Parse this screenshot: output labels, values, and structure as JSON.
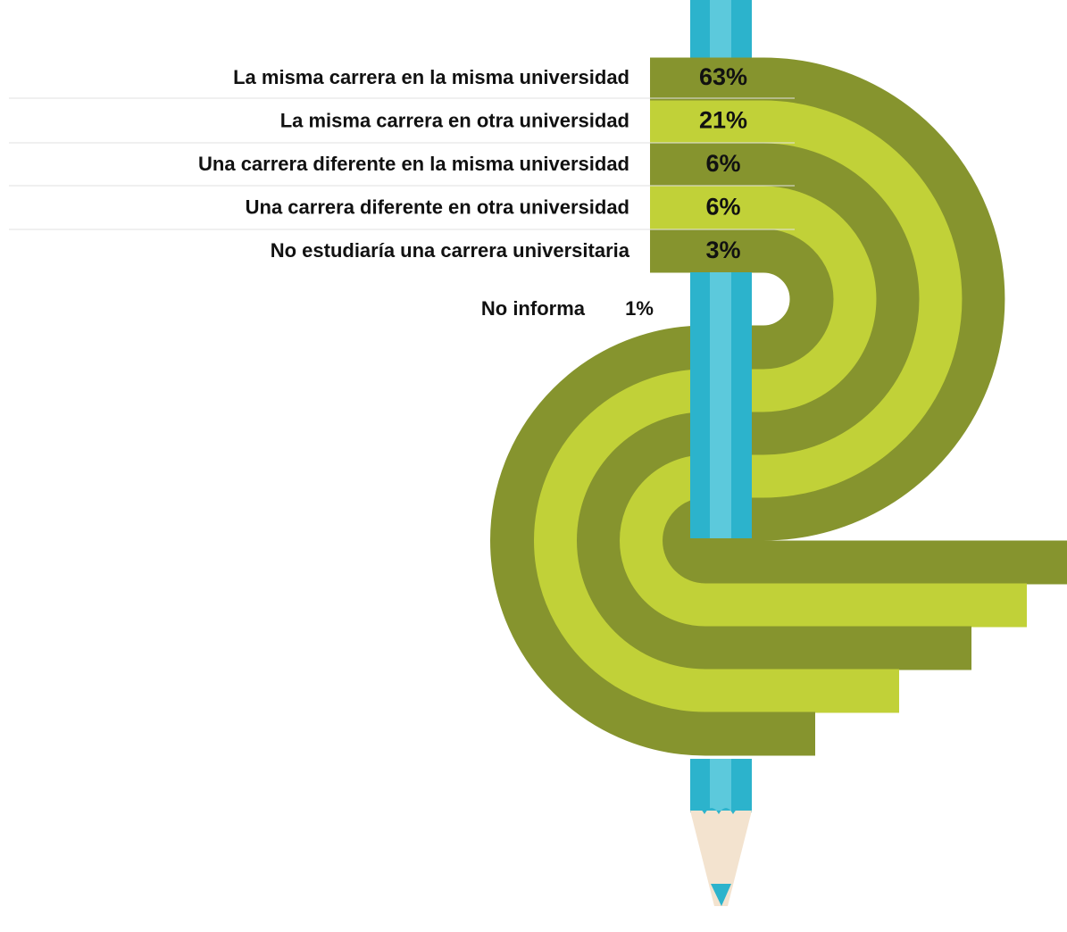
{
  "items": [
    {
      "label": "La misma carrera en la misma universidad",
      "value": "63%"
    },
    {
      "label": "La misma carrera en otra universidad",
      "value": "21%"
    },
    {
      "label": "Una carrera diferente en la misma universidad",
      "value": "6%"
    },
    {
      "label": "Una carrera diferente en otra universidad",
      "value": "6%"
    },
    {
      "label": "No estudiaría una carrera universitaria",
      "value": "3%"
    }
  ],
  "other": {
    "label": "No informa",
    "value": "1%"
  }
}
